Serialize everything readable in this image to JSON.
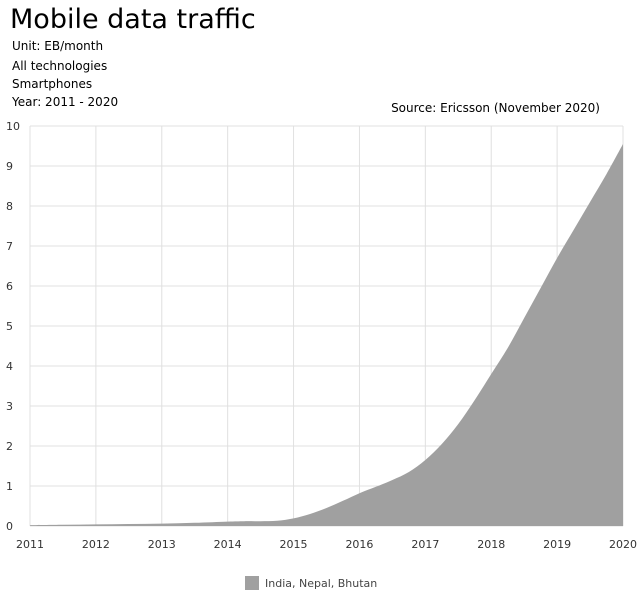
{
  "header": {
    "title": "Mobile data traffic",
    "unit": "Unit: EB/month",
    "technology": "All technologies",
    "device": "Smartphones",
    "years": "Year: 2011 - 2020",
    "source": "Source: Ericsson (November 2020)"
  },
  "colors": {
    "area": "#a0a0a0",
    "grid": "#e0e0e0"
  },
  "chart_data": {
    "type": "area",
    "x": [
      2011,
      2011.5,
      2012,
      2012.5,
      2013,
      2013.5,
      2014,
      2014.25,
      2014.5,
      2014.75,
      2015,
      2015.25,
      2015.5,
      2015.75,
      2016,
      2016.25,
      2016.5,
      2016.75,
      2017,
      2017.25,
      2017.5,
      2017.75,
      2018,
      2018.25,
      2018.5,
      2018.75,
      2019,
      2019.25,
      2019.5,
      2019.75,
      2020
    ],
    "series": [
      {
        "name": "India, Nepal, Bhutan",
        "values": [
          0.02,
          0.03,
          0.04,
          0.05,
          0.06,
          0.08,
          0.11,
          0.12,
          0.12,
          0.13,
          0.19,
          0.3,
          0.45,
          0.63,
          0.82,
          0.98,
          1.15,
          1.35,
          1.65,
          2.05,
          2.55,
          3.15,
          3.8,
          4.45,
          5.2,
          5.95,
          6.7,
          7.4,
          8.1,
          8.8,
          9.55
        ]
      }
    ],
    "xlim": [
      2011,
      2020
    ],
    "ylim": [
      0,
      10
    ],
    "xticks": [
      "2011",
      "2012",
      "2013",
      "2014",
      "2015",
      "2016",
      "2017",
      "2018",
      "2019",
      "2020"
    ],
    "yticks": [
      "0",
      "1",
      "2",
      "3",
      "4",
      "5",
      "6",
      "7",
      "8",
      "9",
      "10"
    ],
    "grid": true,
    "legend_position": "bottom"
  }
}
